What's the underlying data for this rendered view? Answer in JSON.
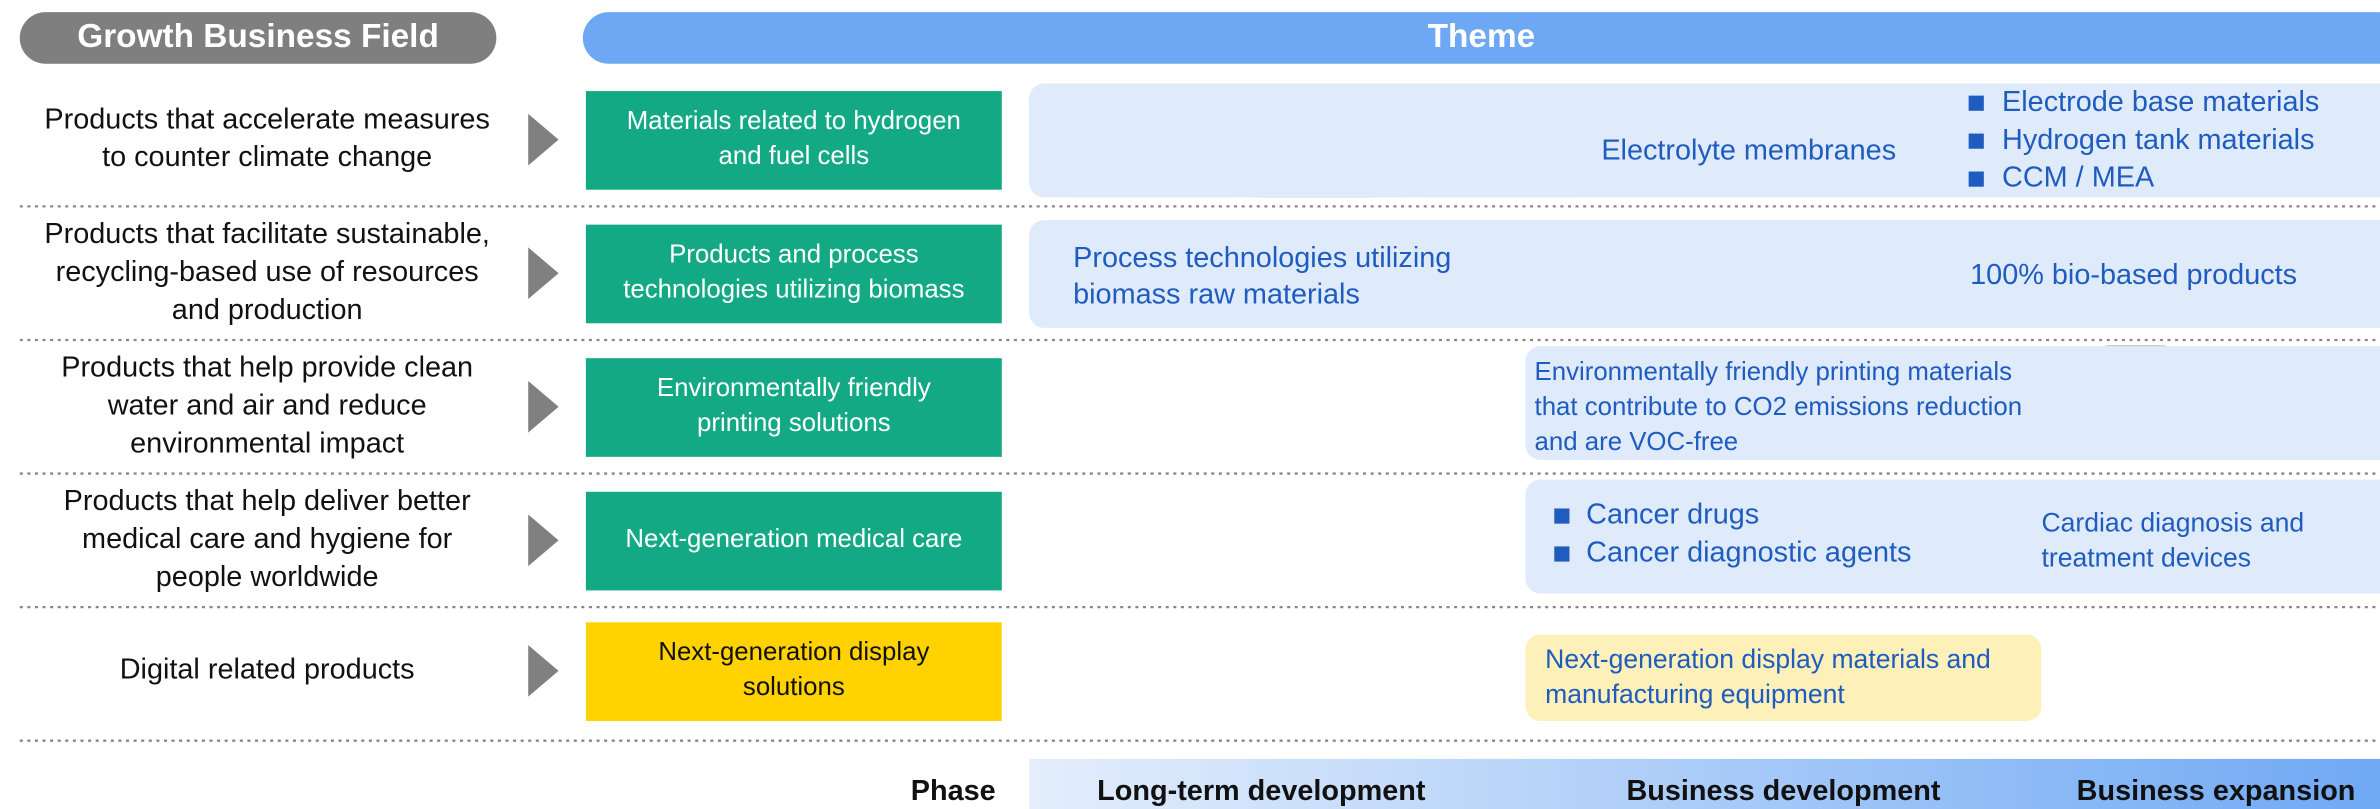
{
  "header": {
    "field": "Growth Business Field",
    "theme": "Theme"
  },
  "rows": [
    {
      "field": [
        "Products that accelerate measures",
        "to counter climate change"
      ],
      "solution": [
        "Materials related to hydrogen",
        "and fuel cells"
      ],
      "theme": {
        "center": [
          "Electrolyte membranes"
        ],
        "bullets": [
          "Electrode base materials",
          "Hydrogen tank materials",
          "CCM / MEA"
        ]
      }
    },
    {
      "field": [
        "Products that facilitate sustainable,",
        "recycling-based use of resources",
        "and production"
      ],
      "solution": [
        "Products and process",
        "technologies utilizing biomass"
      ],
      "theme": {
        "left": [
          "Process technologies utilizing",
          "biomass raw materials"
        ],
        "right": [
          "100% bio-based products"
        ]
      }
    },
    {
      "field": [
        "Products that help provide clean",
        "water and air and reduce",
        "environmental impact"
      ],
      "solution": [
        "Environmentally friendly",
        "printing solutions"
      ],
      "theme": {
        "left": [
          "Environmentally friendly printing materials",
          "that contribute to CO2 emissions reduction",
          "and are VOC-free"
        ]
      }
    },
    {
      "field": [
        "Products that help deliver better",
        "medical care and hygiene for",
        "people worldwide"
      ],
      "solution": [
        "Next-generation medical care"
      ],
      "theme": {
        "bullets": [
          "Cancer drugs",
          "Cancer diagnostic agents"
        ],
        "right": [
          "Cardiac diagnosis and",
          "treatment devices"
        ]
      }
    },
    {
      "field": [
        "Digital related products"
      ],
      "solution": [
        "Next-generation display",
        "solutions"
      ],
      "theme": {
        "left": [
          "Next-generation display materials and",
          "manufacturing equipment"
        ]
      }
    }
  ],
  "phase": {
    "label": "Phase",
    "stages": [
      "Long-term development",
      "Business development",
      "Business expansion"
    ]
  }
}
